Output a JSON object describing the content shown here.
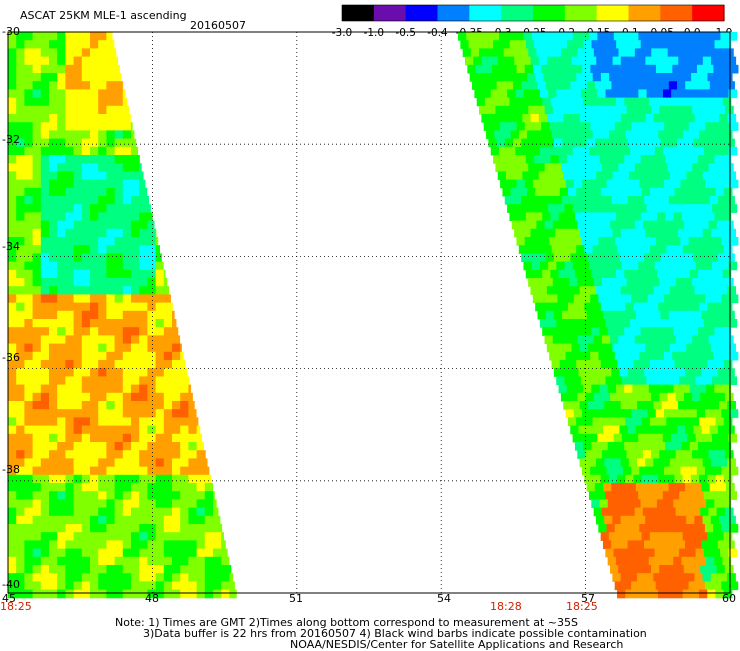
{
  "header": {
    "title": "ASCAT 25KM MLE-1 ascending",
    "date": "20160507"
  },
  "colorbar": {
    "labels": [
      "-3.0",
      "-1.0",
      "-0.5",
      "-0.4",
      "-0.35",
      "-0.3",
      "-0.25",
      "-0.2",
      "-0.15",
      "-0.1",
      "-0.05",
      "0.0",
      "1.0"
    ],
    "colors": [
      "#000000",
      "#6a0dad",
      "#0000ff",
      "#0080ff",
      "#00ffff",
      "#00ff80",
      "#00ff00",
      "#80ff00",
      "#ffff00",
      "#ffa000",
      "#ff6000",
      "#ff0000"
    ]
  },
  "axes": {
    "lon_ticks": [
      "45",
      "48",
      "51",
      "54",
      "57",
      "60"
    ],
    "lat_ticks": [
      "-30",
      "-32",
      "-34",
      "-36",
      "-38",
      "-40"
    ],
    "lon_range": [
      45,
      60
    ],
    "lat_range": [
      -30,
      -40
    ]
  },
  "times": [
    {
      "label": "18:25",
      "lon": 45
    },
    {
      "label": "18:28",
      "lon": 55.75
    },
    {
      "label": "18:25",
      "lon": 57
    }
  ],
  "notes": {
    "line1": "Note: 1) Times are GMT 2)Times along bottom correspond to measurement at ~35S",
    "line2": "3)Data buffer is 22 hrs from 20160507 4) Black wind barbs indicate possible contamination",
    "line3": "NOAA/NESDIS/Center for Satellite Applications and Research"
  }
}
